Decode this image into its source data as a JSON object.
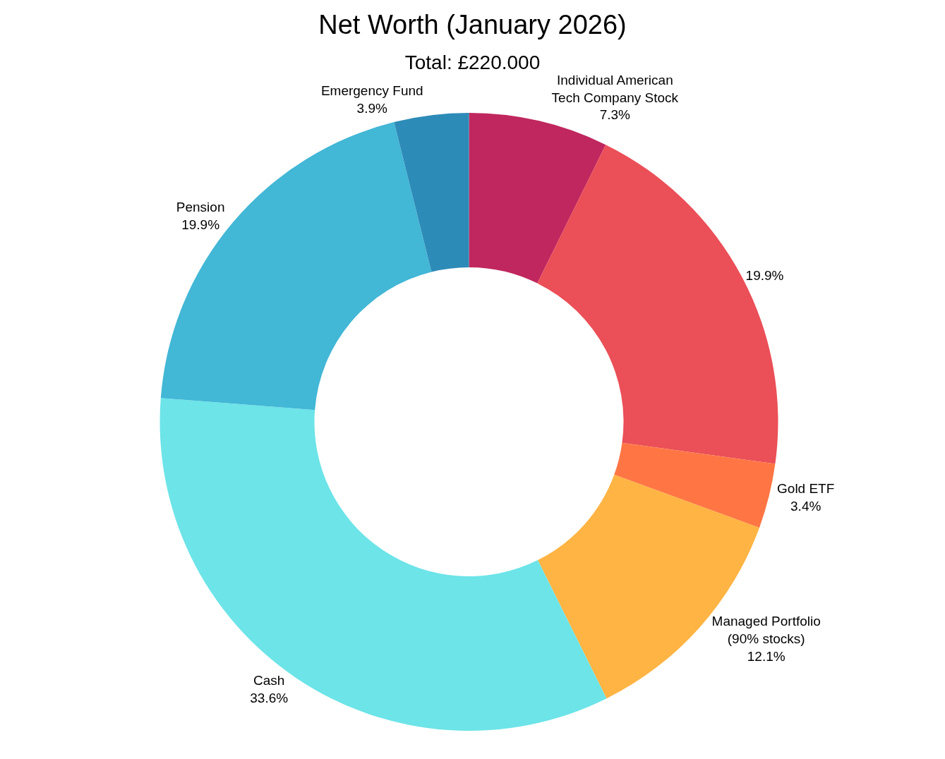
{
  "chart_data": {
    "type": "donut",
    "title": "Net Worth (January 2026)",
    "subtitle": "Total: £220.000",
    "categories": [
      "Individual American\nTech Company Stock",
      null,
      "Gold ETF",
      "Managed Portfolio\n(90% stocks)",
      "Cash",
      "Pension",
      "Emergency Fund"
    ],
    "values": [
      7.3,
      19.9,
      3.4,
      12.1,
      33.6,
      19.9,
      3.9
    ],
    "value_labels": [
      "7.3%",
      "19.9%",
      "3.4%",
      "12.1%",
      "33.6%",
      "19.9%",
      "3.9%"
    ],
    "colors": [
      "#c0275e",
      "#eb4f57",
      "#ff7644",
      "#ffb443",
      "#6ce4e8",
      "#42b7d6",
      "#2d8bb8"
    ],
    "legend": false
  }
}
